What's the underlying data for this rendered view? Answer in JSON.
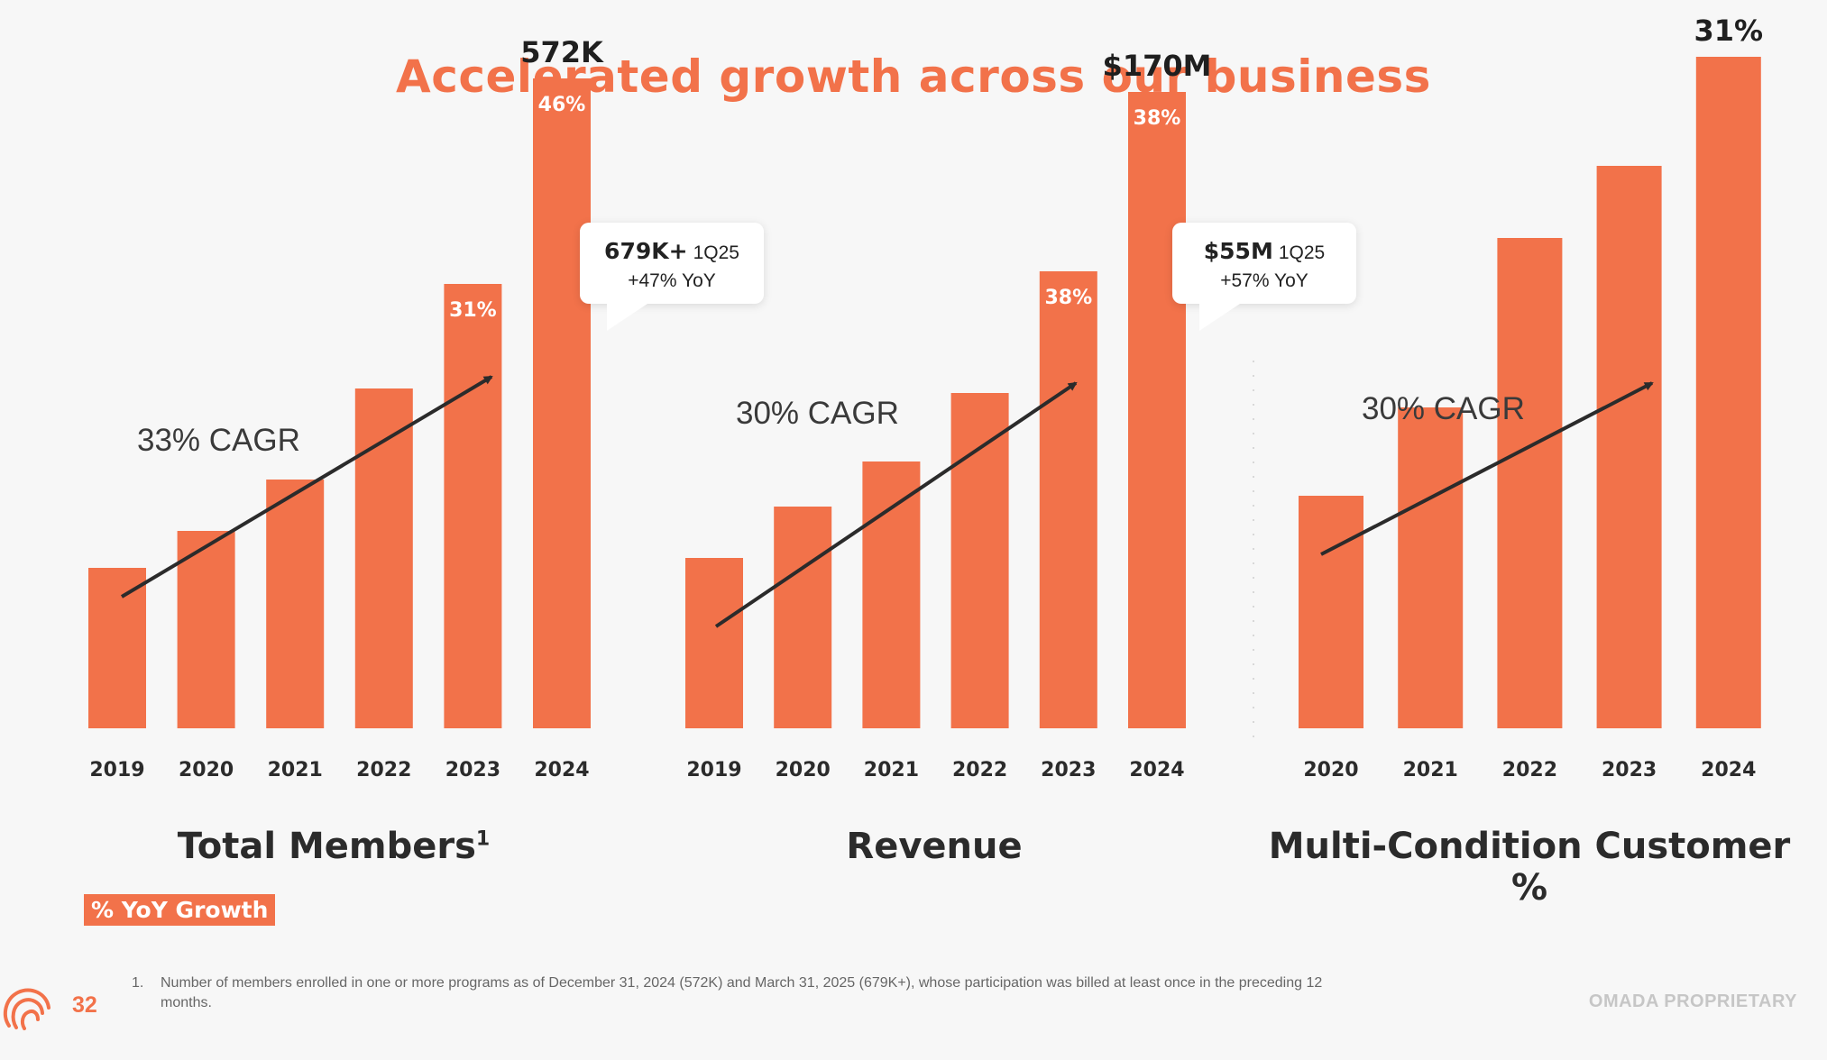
{
  "title": "Accelerated growth across our business",
  "colors": {
    "accent": "#f2724a",
    "text": "#2b2b2b",
    "arrow": "#2b2b2b"
  },
  "chart_data": [
    {
      "type": "bar",
      "title": "Total Members",
      "title_footnote_marker": "1",
      "categories": [
        "2019",
        "2020",
        "2021",
        "2022",
        "2023",
        "2024"
      ],
      "values": [
        178,
        219,
        276,
        377,
        493,
        721
      ],
      "value_unit": "relative bar height (no axis printed)",
      "bar_labels": [
        "",
        "",
        "",
        "",
        "31%",
        "46%"
      ],
      "end_label": "572K",
      "trend_label": "33% CAGR",
      "ylim": [
        0,
        800
      ],
      "callout": {
        "value": "679K+",
        "period": "1Q25",
        "growth": "+47% YoY"
      }
    },
    {
      "type": "bar",
      "title": "Revenue",
      "categories": [
        "2019",
        "2020",
        "2021",
        "2022",
        "2023",
        "2024"
      ],
      "values": [
        189,
        246,
        296,
        372,
        507,
        706
      ],
      "value_unit": "relative bar height (no axis printed)",
      "bar_labels": [
        "",
        "",
        "",
        "",
        "38%",
        "38%"
      ],
      "end_label": "$170M",
      "trend_label": "30% CAGR",
      "ylim": [
        0,
        800
      ],
      "callout": {
        "value": "$55M",
        "period": "1Q25",
        "growth": "+57% YoY"
      }
    },
    {
      "type": "bar",
      "title": "Multi-Condition Customer %",
      "categories": [
        "2020",
        "2021",
        "2022",
        "2023",
        "2024"
      ],
      "values": [
        258,
        356,
        544,
        624,
        745
      ],
      "value_unit": "relative bar height (no axis printed)",
      "bar_labels": [
        "",
        "",
        "",
        "",
        ""
      ],
      "end_label": "31%",
      "trend_label": "30% CAGR",
      "ylim": [
        0,
        800
      ]
    }
  ],
  "legend": {
    "label": "% YoY Growth"
  },
  "footnote": {
    "number": "1.",
    "text": "Number of members enrolled in one or more programs as of December 31, 2024 (572K) and March 31, 2025 (679K+), whose participation was billed at least once in the preceding 12 months."
  },
  "page_number": "32",
  "proprietary_label": "OMADA PROPRIETARY",
  "icons": {
    "logo": "omada-spiral-logo"
  }
}
